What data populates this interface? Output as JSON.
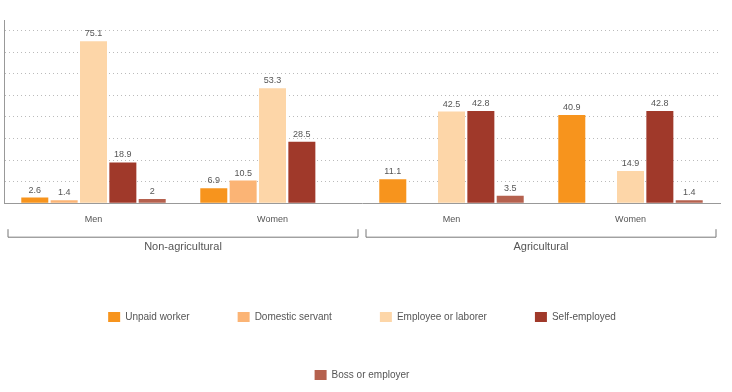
{
  "chart_data": {
    "type": "bar",
    "categories": [
      "Men",
      "Women",
      "Men",
      "Women"
    ],
    "category_groups": [
      {
        "name": "Non-agricultural",
        "categories": [
          "Men",
          "Women"
        ]
      },
      {
        "name": "Agricultural",
        "categories": [
          "Men",
          "Women"
        ]
      }
    ],
    "series": [
      {
        "name": "Unpaid worker",
        "color": "#f7941d",
        "values": [
          2.6,
          6.9,
          11.1,
          40.9
        ]
      },
      {
        "name": "Domestic servant",
        "color": "#fbb475",
        "values": [
          1.4,
          10.5,
          null,
          null
        ]
      },
      {
        "name": "Employee or laborer",
        "color": "#fdd6a8",
        "values": [
          75.1,
          53.3,
          42.5,
          14.9
        ]
      },
      {
        "name": "Self-employed",
        "color": "#a0392a",
        "values": [
          18.9,
          28.5,
          42.8,
          42.8
        ]
      },
      {
        "name": "Boss or employer",
        "color": "#b5614e",
        "values": [
          2,
          null,
          3.5,
          1.4
        ]
      }
    ],
    "ylim": [
      0,
      85
    ],
    "yticks": [
      0,
      10,
      20,
      30,
      40,
      50,
      60,
      70,
      80
    ],
    "grid": true,
    "legend": "bottom",
    "data_labels": true,
    "tick_labels": "x"
  }
}
